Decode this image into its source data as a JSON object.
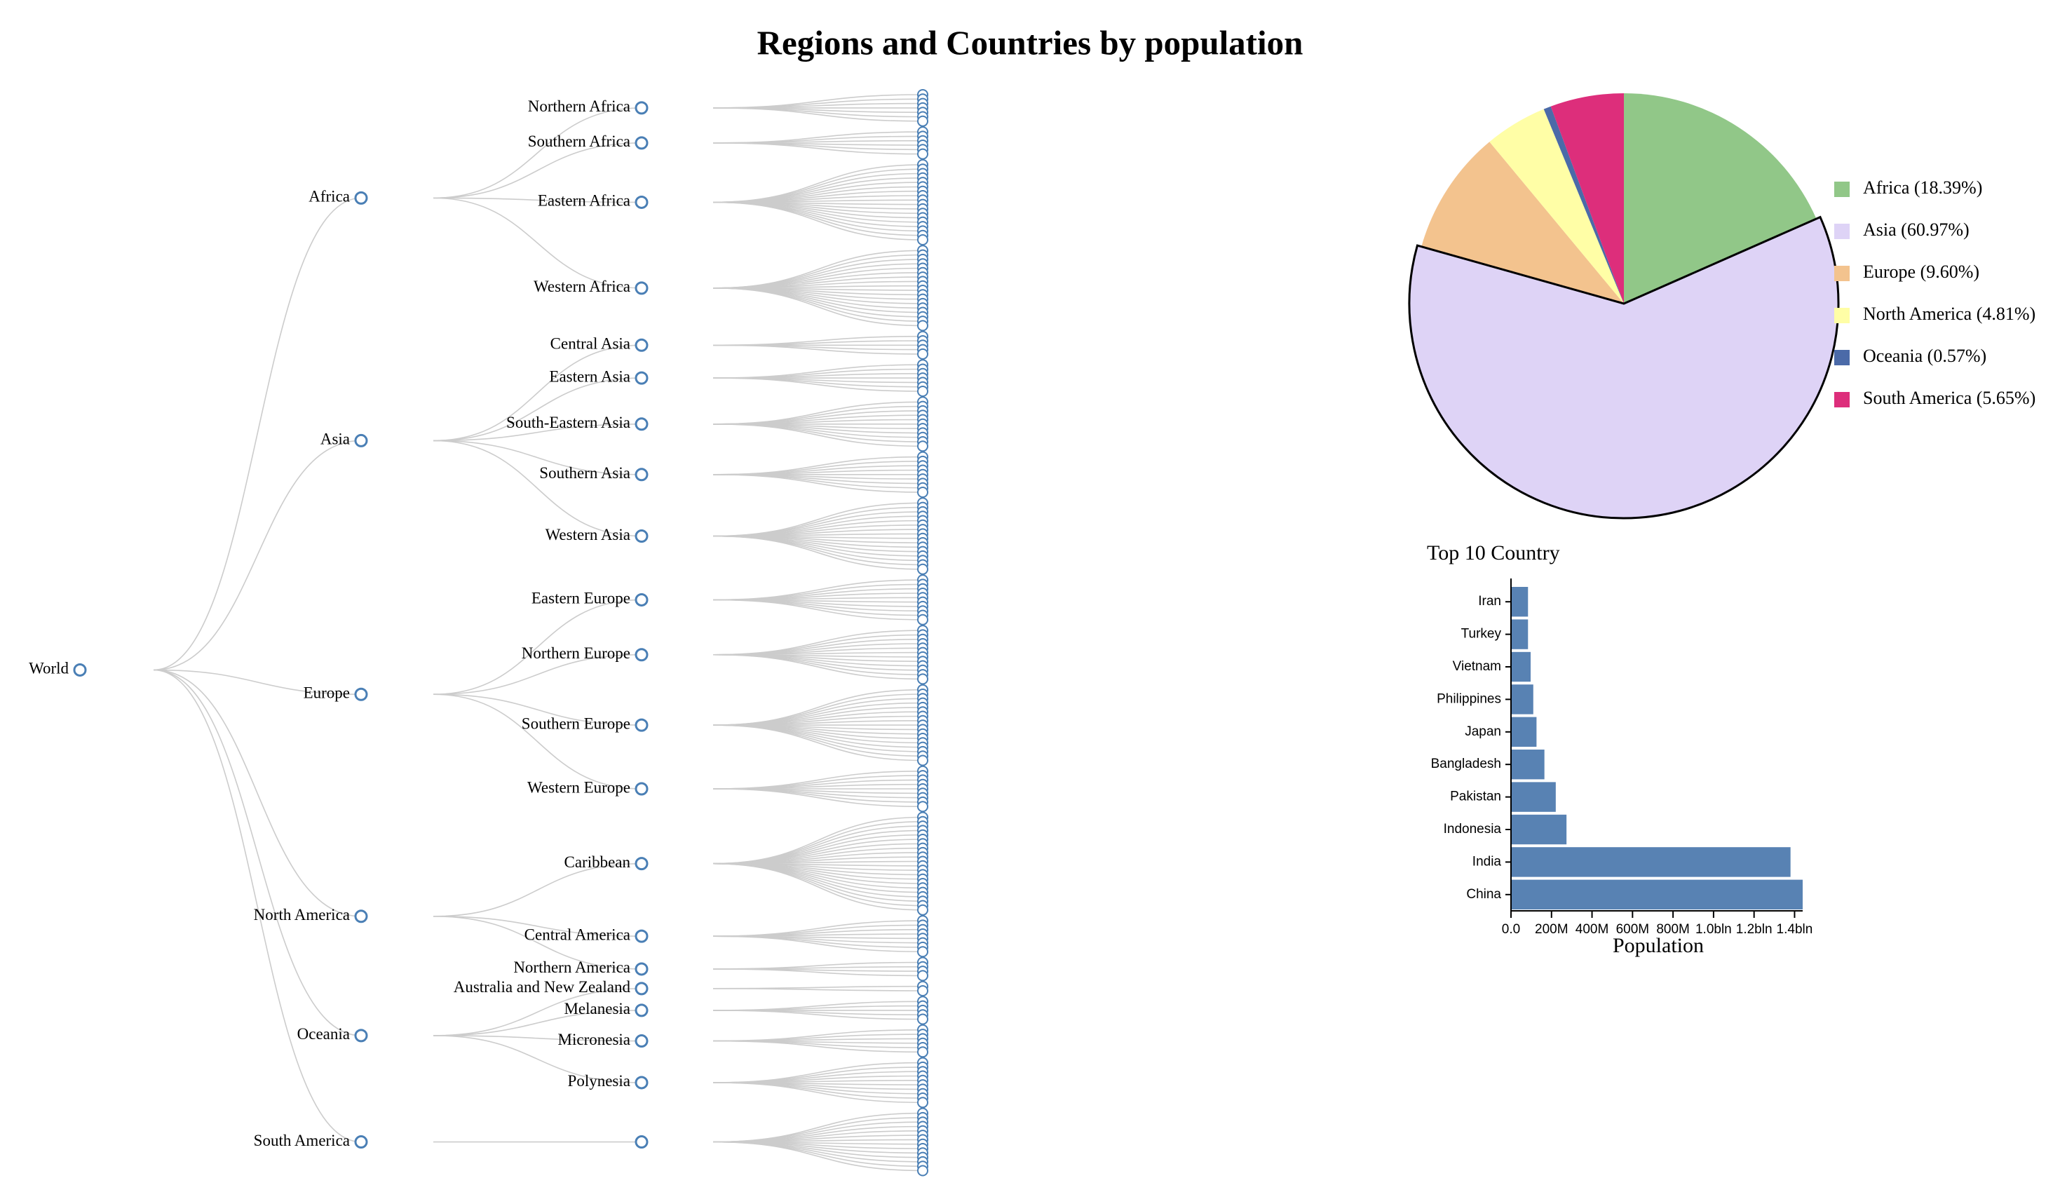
{
  "title": "Regions and Countries by population",
  "tree": {
    "label": "World",
    "children": [
      {
        "label": "Africa",
        "children": [
          {
            "label": "Northern Africa",
            "leaves": 7
          },
          {
            "label": "Southern Africa",
            "leaves": 6
          },
          {
            "label": "Eastern Africa",
            "leaves": 18
          },
          {
            "label": "Western Africa",
            "leaves": 18
          }
        ]
      },
      {
        "label": "Asia",
        "children": [
          {
            "label": "Central Asia",
            "leaves": 5
          },
          {
            "label": "Eastern Asia",
            "leaves": 7
          },
          {
            "label": "South-Eastern Asia",
            "leaves": 11
          },
          {
            "label": "Southern Asia",
            "leaves": 9
          },
          {
            "label": "Western Asia",
            "leaves": 16
          }
        ]
      },
      {
        "label": "Europe",
        "children": [
          {
            "label": "Eastern Europe",
            "leaves": 10
          },
          {
            "label": "Northern Europe",
            "leaves": 12
          },
          {
            "label": "Southern Europe",
            "leaves": 17
          },
          {
            "label": "Western Europe",
            "leaves": 9
          }
        ]
      },
      {
        "label": "North America",
        "children": [
          {
            "label": "Caribbean",
            "leaves": 22
          },
          {
            "label": "Central America",
            "leaves": 8
          },
          {
            "label": "Northern America",
            "leaves": 4
          }
        ]
      },
      {
        "label": "Oceania",
        "children": [
          {
            "label": "Australia and New Zealand",
            "leaves": 2
          },
          {
            "label": "Melanesia",
            "leaves": 5
          },
          {
            "label": "Micronesia",
            "leaves": 6
          },
          {
            "label": "Polynesia",
            "leaves": 10
          }
        ]
      },
      {
        "label": "South America",
        "children": [
          {
            "label": null,
            "leaves": 14
          }
        ]
      }
    ]
  },
  "chart_data": [
    {
      "type": "pie",
      "labels": [
        "Africa (18.39%)",
        "Asia (60.97%)",
        "Europe (9.60%)",
        "North America (4.81%)",
        "Oceania (0.57%)",
        "South America (5.65%)"
      ],
      "values": [
        18.39,
        60.97,
        9.6,
        4.81,
        0.57,
        5.65
      ],
      "colors": [
        "#91c788",
        "#ded3f6",
        "#f3c38e",
        "#fffea6",
        "#4b6aa8",
        "#dd2e7b"
      ],
      "selected_index": 1
    },
    {
      "type": "hbar",
      "title": "Top 10 Country",
      "x_label": "Population",
      "categories": [
        "Iran",
        "Turkey",
        "Vietnam",
        "Philippines",
        "Japan",
        "Bangladesh",
        "Pakistan",
        "Indonesia",
        "India",
        "China"
      ],
      "values": [
        84000000,
        84000000,
        97000000,
        110000000,
        126000000,
        165000000,
        221000000,
        274000000,
        1380000000,
        1440000000
      ],
      "color": "#5882b3",
      "xlim": [
        0,
        1440000000
      ],
      "xticks": [
        {
          "value": 0,
          "label": "0.0"
        },
        {
          "value": 200000000,
          "label": "200M"
        },
        {
          "value": 400000000,
          "label": "400M"
        },
        {
          "value": 600000000,
          "label": "600M"
        },
        {
          "value": 800000000,
          "label": "800M"
        },
        {
          "value": 1000000000,
          "label": "1.0bln"
        },
        {
          "value": 1200000000,
          "label": "1.2bln"
        },
        {
          "value": 1400000000,
          "label": "1.4bln"
        }
      ]
    }
  ]
}
